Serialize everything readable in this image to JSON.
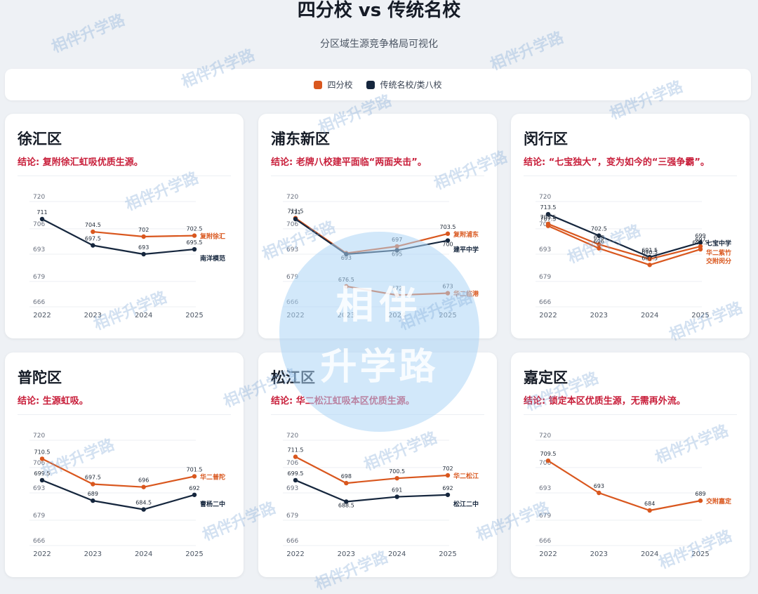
{
  "header": {
    "title": "四分校 vs 传统名校",
    "subtitle": "分区域生源竞争格局可视化"
  },
  "legend": [
    {
      "label": "四分校",
      "color": "#d9571e"
    },
    {
      "label": "传统名校/类八校",
      "color": "#15263d"
    }
  ],
  "colors": {
    "orange": "#d9571e",
    "navy": "#15263d",
    "conclusion": "#c81e3a"
  },
  "watermark": {
    "text": "相伴升学路",
    "circle_top": "相伴",
    "circle_bottom": "升学路"
  },
  "chart_data": [
    {
      "type": "line",
      "title": "徐汇区",
      "conclusion": "结论: 复附徐汇虹吸优质生源。",
      "x": [
        "2022",
        "2023",
        "2024",
        "2025"
      ],
      "ylim": [
        666,
        720
      ],
      "yticks": [
        "720",
        "706",
        "693",
        "679",
        "666"
      ],
      "series": [
        {
          "name": "复附徐汇",
          "group": "四分校",
          "values": [
            null,
            704.5,
            702,
            702.5
          ],
          "labels": [
            "",
            "704.5",
            "702",
            "702.5"
          ]
        },
        {
          "name": "南洋模范",
          "group": "传统名校/类八校",
          "values": [
            711,
            697.5,
            693,
            695.5
          ],
          "labels": [
            "711",
            "697.5",
            "693",
            "695.5"
          ]
        }
      ]
    },
    {
      "type": "line",
      "title": "浦东新区",
      "conclusion": "结论: 老牌八校建平面临“两面夹击”。",
      "x": [
        "2022",
        "2023",
        "2024",
        "2025"
      ],
      "ylim": [
        666,
        720
      ],
      "yticks": [
        "720",
        "706",
        "693",
        "679",
        "666"
      ],
      "series": [
        {
          "name": "复附浦东",
          "group": "四分校",
          "values": [
            711.5,
            693.5,
            697,
            703.5
          ],
          "labels": [
            "711.5",
            "",
            "697",
            "703.5"
          ]
        },
        {
          "name": "华二临港",
          "group": "四分校",
          "values": [
            null,
            676.5,
            672,
            673
          ],
          "labels": [
            "",
            "676.5",
            "672",
            "673"
          ]
        },
        {
          "name": "建平中学",
          "group": "传统名校/类八校",
          "values": [
            711,
            693,
            695,
            700
          ],
          "labels": [
            "711",
            "693",
            "695",
            "700"
          ]
        }
      ]
    },
    {
      "type": "line",
      "title": "闵行区",
      "conclusion": "结论: “七宝独大”，变为如今的“三强争霸”。",
      "x": [
        "2022",
        "2023",
        "2024",
        "2025"
      ],
      "ylim": [
        666,
        720
      ],
      "yticks": [
        "720",
        "706",
        "693",
        "679",
        "666"
      ],
      "series": [
        {
          "name": "七宝中学",
          "group": "传统名校/类八校",
          "values": [
            713.5,
            702.5,
            691.5,
            699
          ],
          "labels": [
            "713.5",
            "702.5",
            "691.5",
            "699"
          ]
        },
        {
          "name": "华二紫竹",
          "group": "四分校",
          "values": [
            708.5,
            698,
            690.5,
            697
          ],
          "labels": [
            "708.5",
            "698",
            "690.5",
            "697"
          ]
        },
        {
          "name": "交附闵分",
          "group": "四分校",
          "values": [
            707.5,
            696,
            687.5,
            695.5
          ],
          "labels": [
            "707.5",
            "696",
            "687.5",
            "695.5"
          ]
        }
      ]
    },
    {
      "type": "line",
      "title": "普陀区",
      "conclusion": "结论: 生源虹吸。",
      "x": [
        "2022",
        "2023",
        "2024",
        "2025"
      ],
      "ylim": [
        666,
        720
      ],
      "yticks": [
        "720",
        "706",
        "693",
        "679",
        "666"
      ],
      "series": [
        {
          "name": "华二普陀",
          "group": "四分校",
          "values": [
            710.5,
            697.5,
            696,
            701.5
          ],
          "labels": [
            "710.5",
            "697.5",
            "696",
            "701.5"
          ]
        },
        {
          "name": "曹杨二中",
          "group": "传统名校/类八校",
          "values": [
            699.5,
            689,
            684.5,
            692
          ],
          "labels": [
            "699.5",
            "689",
            "684.5",
            "692"
          ]
        }
      ]
    },
    {
      "type": "line",
      "title": "松江区",
      "conclusion": "结论: 华二松江虹吸本区优质生源。",
      "x": [
        "2022",
        "2023",
        "2024",
        "2025"
      ],
      "ylim": [
        666,
        720
      ],
      "yticks": [
        "720",
        "706",
        "693",
        "679",
        "666"
      ],
      "series": [
        {
          "name": "华二松江",
          "group": "四分校",
          "values": [
            711.5,
            698,
            700.5,
            702
          ],
          "labels": [
            "711.5",
            "698",
            "700.5",
            "702"
          ]
        },
        {
          "name": "松江二中",
          "group": "传统名校/类八校",
          "values": [
            699.5,
            688.5,
            691,
            692
          ],
          "labels": [
            "699.5",
            "688.5",
            "691",
            "692"
          ]
        }
      ]
    },
    {
      "type": "line",
      "title": "嘉定区",
      "conclusion": "结论: 锁定本区优质生源，无需再外流。",
      "x": [
        "2022",
        "2023",
        "2024",
        "2025"
      ],
      "ylim": [
        666,
        720
      ],
      "yticks": [
        "720",
        "706",
        "693",
        "679",
        "666"
      ],
      "series": [
        {
          "name": "交附嘉定",
          "group": "四分校",
          "values": [
            709.5,
            693,
            684,
            689
          ],
          "labels": [
            "709.5",
            "693",
            "684",
            "689"
          ]
        }
      ]
    }
  ]
}
